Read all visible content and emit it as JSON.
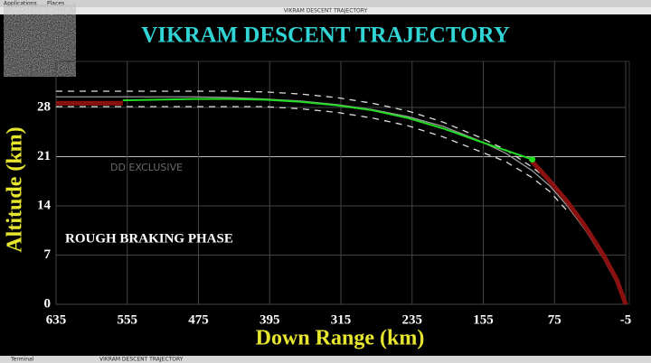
{
  "screen": {
    "menu": [
      "Applications",
      "Places"
    ],
    "window_title": "VIKRAM DESCENT TRAJECTORY",
    "taskbar": [
      "Terminal",
      "VIKRAM DESCENT TRAJECTORY"
    ]
  },
  "chart_data": {
    "type": "line",
    "title": "VIKRAM DESCENT TRAJECTORY",
    "x_label": "Down Range (km)",
    "y_label": "Altitude (km)",
    "annotations": [
      "ROUGH BRAKING PHASE",
      "DD EXCLUSIVE"
    ],
    "x": [
      635,
      600,
      560,
      520,
      480,
      440,
      400,
      360,
      320,
      280,
      240,
      200,
      160,
      130,
      100,
      80,
      60,
      40,
      20,
      5,
      -5
    ],
    "series": [
      {
        "color": "#9a9a9a",
        "values": [
          29.5,
          29.5,
          29.5,
          29.5,
          29.5,
          29.4,
          29.2,
          28.9,
          28.4,
          27.7,
          26.7,
          25.3,
          23.3,
          21.5,
          19.0,
          16.8,
          13.9,
          10.5,
          6.5,
          3.0,
          0
        ]
      },
      {
        "color": "#dddddd",
        "dashed": true,
        "values": [
          30.3,
          30.3,
          30.3,
          30.3,
          30.3,
          30.3,
          30.2,
          29.9,
          29.4,
          28.6,
          27.5,
          25.9,
          23.8,
          22.0,
          19.5,
          17.5,
          14.8,
          null,
          null,
          null,
          null
        ]
      },
      {
        "color": "#dddddd",
        "dashed": true,
        "values": [
          28.1,
          28.1,
          28.1,
          28.1,
          28.1,
          28.1,
          28.1,
          27.8,
          27.3,
          26.5,
          25.4,
          23.8,
          21.8,
          20.3,
          18.0,
          16.0,
          13.2,
          null,
          null,
          null,
          null
        ]
      },
      {
        "color": "#8b1010",
        "width": 5,
        "values": [
          28.6,
          28.6,
          28.6,
          null,
          null,
          null,
          null,
          null,
          null,
          null,
          null,
          null,
          null,
          null,
          20.3,
          17.5,
          14.5,
          11.0,
          7.0,
          3.5,
          0
        ]
      },
      {
        "color": "#22dd22",
        "width": 2,
        "values": [
          null,
          null,
          29.0,
          29.1,
          29.2,
          29.2,
          29.1,
          28.8,
          28.3,
          27.6,
          26.5,
          25.0,
          23.2,
          21.9,
          20.6,
          null,
          null,
          null,
          null,
          null,
          null
        ]
      }
    ],
    "xlim": [
      635,
      -5
    ],
    "xticks": [
      635,
      555,
      475,
      395,
      315,
      235,
      155,
      75,
      -5
    ],
    "ylim": [
      0,
      33
    ],
    "yticks": [
      0,
      7,
      14,
      21,
      28
    ],
    "grid": true
  }
}
